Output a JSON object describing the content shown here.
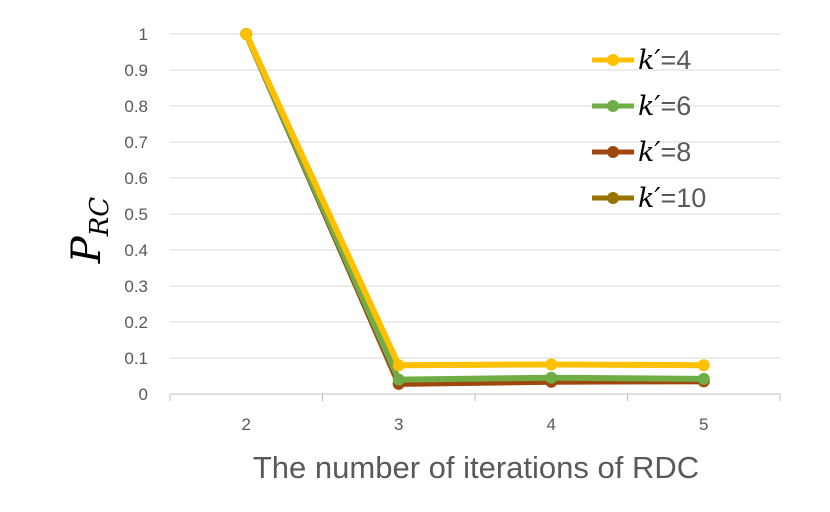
{
  "chart_data": {
    "type": "line",
    "x": [
      2,
      3,
      4,
      5
    ],
    "categories": [
      "2",
      "3",
      "4",
      "5"
    ],
    "xlabel": "The number of iterations of RDC",
    "ylabel": {
      "main": "P",
      "subscript": "RC"
    },
    "ylim": [
      0,
      1
    ],
    "yticks": [
      "0",
      "0.1",
      "0.2",
      "0.3",
      "0.4",
      "0.5",
      "0.6",
      "0.7",
      "0.8",
      "0.9",
      "1"
    ],
    "grid": true,
    "legend_position": "top-right",
    "series": [
      {
        "name": "k′=4",
        "k_label": "k′",
        "value_label": "=4",
        "color": "#FFC000",
        "values": [
          1,
          0.08,
          0.082,
          0.08
        ]
      },
      {
        "name": "k′=6",
        "k_label": "k′",
        "value_label": "=6",
        "color": "#70AD47",
        "values": [
          1,
          0.04,
          0.045,
          0.042
        ]
      },
      {
        "name": "k′=8",
        "k_label": "k′",
        "value_label": "=8",
        "color": "#9E480E",
        "values": [
          1,
          0.028,
          0.034,
          0.036
        ]
      },
      {
        "name": "k′=10",
        "k_label": "k′",
        "value_label": "=10",
        "color": "#997300",
        "values": [
          1,
          0.03,
          0.036,
          0.035
        ]
      }
    ]
  }
}
